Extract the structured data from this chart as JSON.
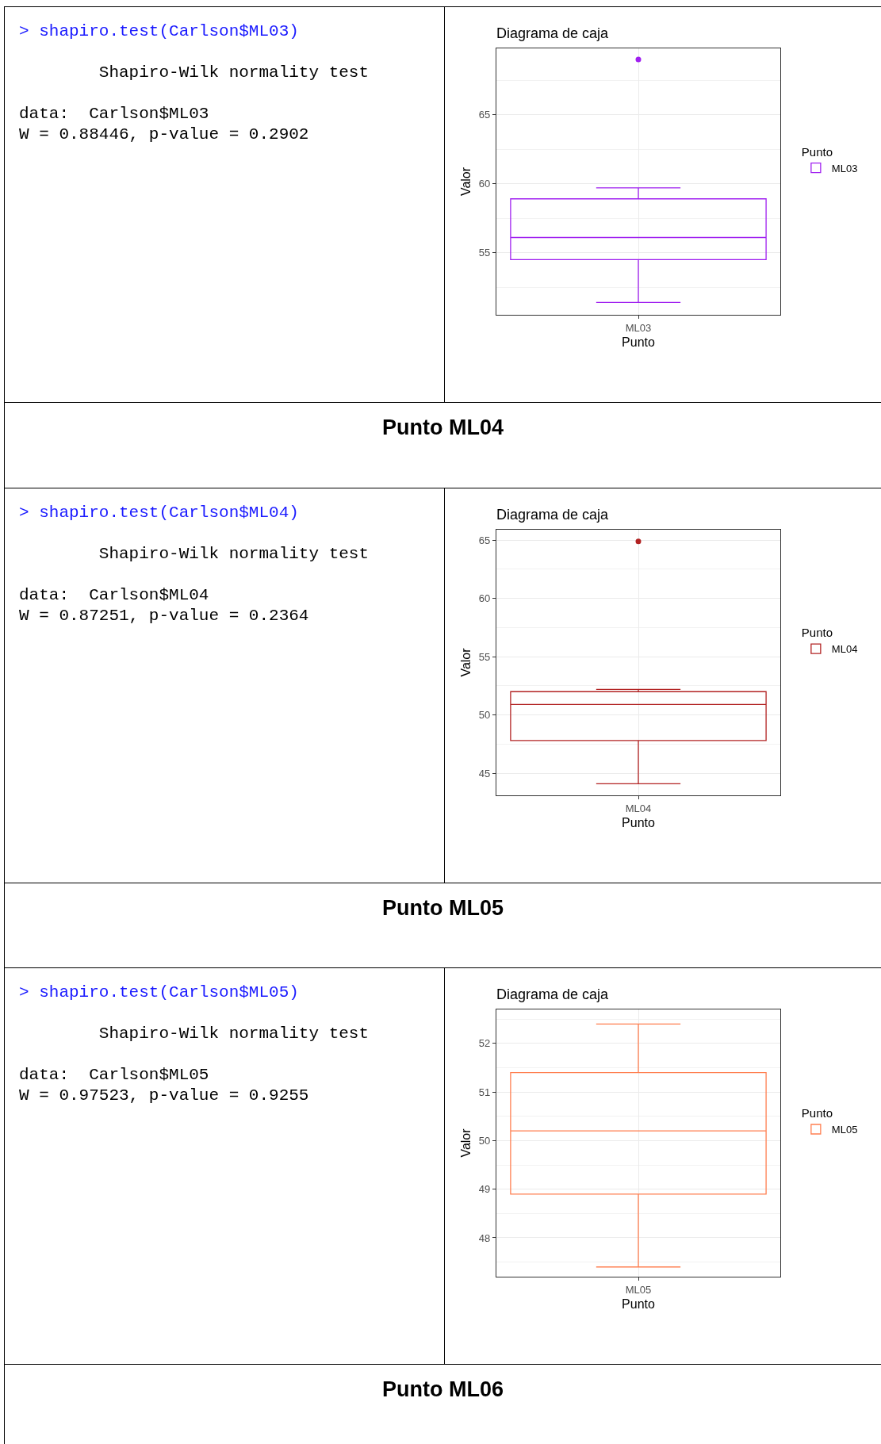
{
  "chart_data": [
    {
      "type": "other",
      "annotations": [
        "> shapiro.test(Carlson$ML03)",
        "Shapiro-Wilk normality test",
        "data:  Carlson$ML03",
        "W = 0.88446, p-value = 0.2902"
      ]
    },
    {
      "type": "box",
      "title": "Diagrama de caja",
      "xlabel": "Punto",
      "ylabel": "Valor",
      "legend_title": "Punto",
      "legend": "right",
      "grid": true,
      "categories": [
        "ML03"
      ],
      "ylim": [
        50.5,
        69.8
      ],
      "yticks": [
        55,
        60,
        65
      ],
      "series": [
        {
          "name": "ML03",
          "color": "#a020f0",
          "boxes": [
            {
              "low": 51.4,
              "q1": 54.5,
              "median": 56.1,
              "q3": 58.9,
              "high": 59.7,
              "outliers": [
                69.0
              ]
            }
          ]
        }
      ]
    },
    {
      "type": "other",
      "title": "Punto ML04"
    },
    {
      "type": "other",
      "annotations": [
        "> shapiro.test(Carlson$ML04)",
        "Shapiro-Wilk normality test",
        "data:  Carlson$ML04",
        "W = 0.87251, p-value = 0.2364"
      ]
    },
    {
      "type": "box",
      "title": "Diagrama de caja",
      "xlabel": "Punto",
      "ylabel": "Valor",
      "legend_title": "Punto",
      "legend": "right",
      "grid": true,
      "categories": [
        "ML04"
      ],
      "ylim": [
        43.1,
        65.9
      ],
      "yticks": [
        45,
        50,
        55,
        60,
        65
      ],
      "series": [
        {
          "name": "ML04",
          "color": "#b22222",
          "boxes": [
            {
              "low": 44.1,
              "q1": 47.8,
              "median": 50.9,
              "q3": 52.0,
              "high": 52.2,
              "outliers": [
                64.9
              ]
            }
          ]
        }
      ]
    },
    {
      "type": "other",
      "title": "Punto ML05"
    },
    {
      "type": "other",
      "annotations": [
        "> shapiro.test(Carlson$ML05)",
        "Shapiro-Wilk normality test",
        "data:  Carlson$ML05",
        "W = 0.97523, p-value = 0.9255"
      ]
    },
    {
      "type": "box",
      "title": "Diagrama de caja",
      "xlabel": "Punto",
      "ylabel": "Valor",
      "legend_title": "Punto",
      "legend": "right",
      "grid": true,
      "categories": [
        "ML05"
      ],
      "ylim": [
        47.2,
        52.7
      ],
      "yticks": [
        48,
        49,
        50,
        51,
        52
      ],
      "series": [
        {
          "name": "ML05",
          "color": "#ff7f50",
          "boxes": [
            {
              "low": 47.4,
              "q1": 48.9,
              "median": 50.2,
              "q3": 51.4,
              "high": 52.4
            }
          ]
        }
      ]
    },
    {
      "type": "other",
      "title": "Punto ML06"
    }
  ]
}
